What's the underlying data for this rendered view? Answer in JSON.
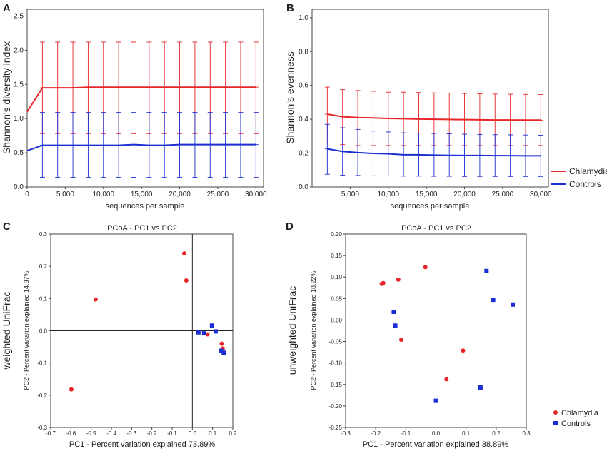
{
  "figure": {
    "panel_labels": [
      "A",
      "B",
      "C",
      "D"
    ],
    "legend_top": [
      {
        "name": "Chlamydia",
        "color": "#e8262a"
      },
      {
        "name": "Controls",
        "color": "#1b2ed1"
      }
    ],
    "legend_bottom": [
      {
        "name": "Chlamydia",
        "color": "#e8262a"
      },
      {
        "name": "Controls",
        "color": "#1b2ed1"
      }
    ]
  },
  "chart_data": [
    {
      "id": "A",
      "type": "line",
      "xlabel": "sequences per sample",
      "ylabel": "Shannon's diversity index",
      "xlim": [
        0,
        31000
      ],
      "ylim": [
        0,
        2.6
      ],
      "xticks": [
        0,
        5000,
        10000,
        15000,
        20000,
        25000,
        30000
      ],
      "xtick_labels": [
        "0",
        "5,000",
        "10,000",
        "15,000",
        "20,000",
        "25,000",
        "30,000"
      ],
      "yticks": [
        0,
        0.5,
        1.0,
        1.5,
        2.0,
        2.5
      ],
      "ytick_labels": [
        "0.0",
        "0.5",
        "1.0",
        "1.5",
        "2.0",
        "2.5"
      ],
      "series": [
        {
          "name": "Chlamydia",
          "color": "#e8262a",
          "line_x": [
            0,
            2000,
            4000,
            6000,
            8000,
            10000,
            12000,
            14000,
            16000,
            18000,
            20000,
            22000,
            24000,
            26000,
            28000,
            30000
          ],
          "line_y": [
            1.1,
            1.45,
            1.45,
            1.45,
            1.46,
            1.46,
            1.46,
            1.46,
            1.46,
            1.46,
            1.46,
            1.46,
            1.46,
            1.46,
            1.46,
            1.46
          ],
          "err_x": [
            2000,
            4000,
            6000,
            8000,
            10000,
            12000,
            14000,
            16000,
            18000,
            20000,
            22000,
            24000,
            26000,
            28000,
            30000
          ],
          "err_mean": [
            1.45,
            1.45,
            1.45,
            1.46,
            1.46,
            1.46,
            1.46,
            1.46,
            1.46,
            1.46,
            1.46,
            1.46,
            1.46,
            1.46,
            1.46
          ],
          "err_low": [
            0.78,
            0.78,
            0.78,
            0.78,
            0.78,
            0.78,
            0.78,
            0.78,
            0.78,
            0.78,
            0.78,
            0.78,
            0.78,
            0.78,
            0.78
          ],
          "err_high": [
            2.12,
            2.12,
            2.12,
            2.12,
            2.12,
            2.12,
            2.12,
            2.12,
            2.12,
            2.12,
            2.12,
            2.12,
            2.12,
            2.12,
            2.12
          ]
        },
        {
          "name": "Controls",
          "color": "#1b2ed1",
          "line_x": [
            0,
            2000,
            4000,
            6000,
            8000,
            10000,
            12000,
            14000,
            16000,
            18000,
            20000,
            22000,
            24000,
            26000,
            28000,
            30000
          ],
          "line_y": [
            0.53,
            0.61,
            0.61,
            0.61,
            0.61,
            0.61,
            0.61,
            0.62,
            0.61,
            0.61,
            0.62,
            0.62,
            0.62,
            0.62,
            0.62,
            0.62
          ],
          "err_x": [
            2000,
            4000,
            6000,
            8000,
            10000,
            12000,
            14000,
            16000,
            18000,
            20000,
            22000,
            24000,
            26000,
            28000,
            30000
          ],
          "err_mean": [
            0.61,
            0.61,
            0.61,
            0.61,
            0.61,
            0.61,
            0.62,
            0.61,
            0.61,
            0.62,
            0.62,
            0.62,
            0.62,
            0.62,
            0.62
          ],
          "err_low": [
            0.14,
            0.14,
            0.14,
            0.14,
            0.14,
            0.14,
            0.14,
            0.14,
            0.14,
            0.14,
            0.14,
            0.14,
            0.14,
            0.14,
            0.14
          ],
          "err_high": [
            1.09,
            1.09,
            1.09,
            1.09,
            1.09,
            1.09,
            1.09,
            1.09,
            1.09,
            1.09,
            1.09,
            1.09,
            1.09,
            1.09,
            1.09
          ]
        }
      ]
    },
    {
      "id": "B",
      "type": "line",
      "xlabel": "sequences per sample",
      "ylabel": "Shannon's evenness",
      "xlim": [
        0,
        31000
      ],
      "ylim": [
        0,
        1.05
      ],
      "xticks": [
        5000,
        10000,
        15000,
        20000,
        25000,
        30000
      ],
      "xtick_labels": [
        "5,000",
        "10,000",
        "15,000",
        "20,000",
        "25,000",
        "30,000"
      ],
      "yticks": [
        0,
        0.2,
        0.4,
        0.6,
        0.8,
        1.0
      ],
      "ytick_labels": [
        "0.0",
        "0.2",
        "0.4",
        "0.6",
        "0.8",
        "1.0"
      ],
      "series": [
        {
          "name": "Chlamydia",
          "color": "#e8262a",
          "line_x": [
            2000,
            4000,
            6000,
            8000,
            10000,
            12000,
            14000,
            16000,
            18000,
            20000,
            22000,
            24000,
            26000,
            28000,
            30000
          ],
          "line_y": [
            0.43,
            0.415,
            0.41,
            0.408,
            0.405,
            0.403,
            0.401,
            0.4,
            0.399,
            0.398,
            0.397,
            0.396,
            0.396,
            0.395,
            0.395
          ],
          "err_x": [
            2000,
            4000,
            6000,
            8000,
            10000,
            12000,
            14000,
            16000,
            18000,
            20000,
            22000,
            24000,
            26000,
            28000,
            30000
          ],
          "err_mean": [
            0.43,
            0.415,
            0.41,
            0.408,
            0.405,
            0.403,
            0.401,
            0.4,
            0.399,
            0.398,
            0.397,
            0.396,
            0.396,
            0.395,
            0.395
          ],
          "err_low": [
            0.26,
            0.25,
            0.245,
            0.245,
            0.245,
            0.245,
            0.245,
            0.245,
            0.245,
            0.245,
            0.245,
            0.245,
            0.245,
            0.245,
            0.245
          ],
          "err_high": [
            0.59,
            0.575,
            0.57,
            0.565,
            0.56,
            0.56,
            0.558,
            0.556,
            0.554,
            0.552,
            0.55,
            0.549,
            0.548,
            0.547,
            0.546
          ]
        },
        {
          "name": "Controls",
          "color": "#1b2ed1",
          "line_x": [
            2000,
            4000,
            6000,
            8000,
            10000,
            12000,
            14000,
            16000,
            18000,
            20000,
            22000,
            24000,
            26000,
            28000,
            30000
          ],
          "line_y": [
            0.225,
            0.21,
            0.203,
            0.198,
            0.196,
            0.19,
            0.19,
            0.188,
            0.187,
            0.186,
            0.186,
            0.185,
            0.185,
            0.184,
            0.184
          ],
          "err_x": [
            2000,
            4000,
            6000,
            8000,
            10000,
            12000,
            14000,
            16000,
            18000,
            20000,
            22000,
            24000,
            26000,
            28000,
            30000
          ],
          "err_mean": [
            0.225,
            0.21,
            0.203,
            0.198,
            0.196,
            0.19,
            0.19,
            0.188,
            0.187,
            0.186,
            0.186,
            0.185,
            0.185,
            0.184,
            0.184
          ],
          "err_low": [
            0.075,
            0.07,
            0.068,
            0.066,
            0.065,
            0.064,
            0.064,
            0.063,
            0.063,
            0.062,
            0.062,
            0.062,
            0.062,
            0.062,
            0.062
          ],
          "err_high": [
            0.37,
            0.35,
            0.34,
            0.33,
            0.325,
            0.32,
            0.318,
            0.316,
            0.314,
            0.312,
            0.31,
            0.309,
            0.308,
            0.307,
            0.306
          ]
        }
      ]
    },
    {
      "id": "C",
      "type": "scatter",
      "title": "PCoA - PC1 vs PC2",
      "side_label": "weighted UniFrac",
      "xlabel": "PC1 - Percent variation explained 73.89%",
      "ylabel": "PC2 - Percent variation explained 14.37%",
      "xlim": [
        -0.7,
        0.2
      ],
      "ylim": [
        -0.3,
        0.3
      ],
      "xticks": [
        -0.7,
        -0.6,
        -0.5,
        -0.4,
        -0.3,
        -0.2,
        -0.1,
        0.0,
        0.1,
        0.2
      ],
      "xtick_labels": [
        "-0.7",
        "-0.6",
        "-0.5",
        "-0.4",
        "-0.3",
        "-0.2",
        "-0.1",
        "0.0",
        "0.1",
        "0.2"
      ],
      "yticks": [
        -0.3,
        -0.2,
        -0.1,
        0.0,
        0.1,
        0.2,
        0.3
      ],
      "ytick_labels": [
        "-0.3",
        "-0.2",
        "-0.1",
        "0.0",
        "0.1",
        "0.2",
        "0.3"
      ],
      "series": [
        {
          "name": "Chlamydia",
          "color": "#e8262a",
          "marker": "circle",
          "x": [
            -0.598,
            -0.478,
            -0.04,
            -0.03,
            0.075,
            0.145,
            0.15
          ],
          "y": [
            -0.182,
            0.097,
            0.24,
            0.156,
            -0.011,
            -0.04,
            -0.055
          ]
        },
        {
          "name": "Controls",
          "color": "#1b2ed1",
          "marker": "square",
          "x": [
            0.03,
            0.058,
            0.097,
            0.115,
            0.142,
            0.155
          ],
          "y": [
            -0.005,
            -0.008,
            0.016,
            -0.002,
            -0.062,
            -0.068
          ]
        }
      ]
    },
    {
      "id": "D",
      "type": "scatter",
      "title": "PCoA - PC1 vs PC2",
      "side_label": "unweighted UniFrac",
      "xlabel": "PC1 - Percent variation explained 38.89%",
      "ylabel": "PC2 - Percent variation explained 18.22%",
      "xlim": [
        -0.3,
        0.3
      ],
      "ylim": [
        -0.25,
        0.2
      ],
      "xticks": [
        -0.3,
        -0.2,
        -0.1,
        0.0,
        0.1,
        0.2,
        0.3
      ],
      "xtick_labels": [
        "-0.3",
        "-0.2",
        "-0.1",
        "0.0",
        "0.1",
        "0.2",
        "0.3"
      ],
      "yticks": [
        -0.25,
        -0.2,
        -0.15,
        -0.1,
        -0.05,
        0.0,
        0.05,
        0.1,
        0.15,
        0.2
      ],
      "ytick_labels": [
        "-0.25",
        "-0.20",
        "-0.15",
        "-0.10",
        "-0.05",
        "0.00",
        "0.05",
        "0.10",
        "0.15",
        "0.20"
      ],
      "series": [
        {
          "name": "Chlamydia",
          "color": "#e8262a",
          "marker": "circle",
          "x": [
            -0.18,
            -0.175,
            -0.125,
            -0.115,
            -0.035,
            0.035,
            0.09
          ],
          "y": [
            0.084,
            0.086,
            0.094,
            -0.046,
            0.123,
            -0.138,
            -0.071
          ]
        },
        {
          "name": "Controls",
          "color": "#1b2ed1",
          "marker": "square",
          "x": [
            -0.14,
            -0.135,
            0.0,
            0.148,
            0.168,
            0.19,
            0.255
          ],
          "y": [
            0.019,
            -0.013,
            -0.188,
            -0.157,
            0.114,
            0.047,
            0.036
          ]
        }
      ]
    }
  ]
}
